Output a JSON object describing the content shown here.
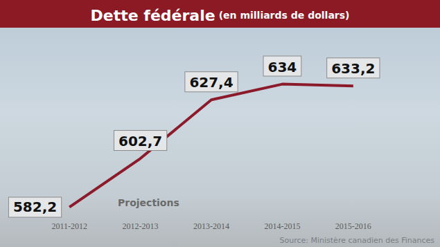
{
  "chart_data": {
    "type": "line",
    "title": "Dette fédérale",
    "subtitle": "(en milliards de dollars)",
    "categories": [
      "2011-2012",
      "2012-2013",
      "2013-2014",
      "2014-2015",
      "2015-2016"
    ],
    "values": [
      582.2,
      602.7,
      627.4,
      634,
      633.2
    ],
    "value_labels": [
      "582,2",
      "602,7",
      "627,4",
      "634",
      "633,2"
    ],
    "color": "#8b1a2b",
    "ylim": [
      580,
      640
    ],
    "yticks": [
      580,
      600,
      620,
      640
    ],
    "grid": false,
    "data_labels": true,
    "tick_labels": "x",
    "annotations": [
      "Projections"
    ],
    "source": "Source: Ministère canadien des Finances"
  }
}
